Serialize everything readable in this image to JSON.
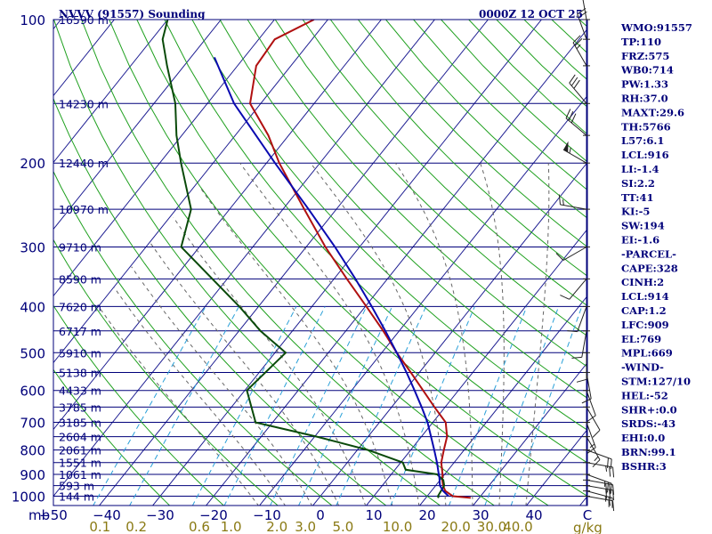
{
  "title_left": "NVVV (91557) Sounding",
  "title_right": "0000Z 12 OCT 25",
  "unit_pressure": "mb",
  "unit_mixing": "g/kg",
  "colors": {
    "frame": "#00007a",
    "isobar": "#00007a",
    "isotherm": "#1a1a90",
    "dry_adiabat": "#1fa01f",
    "moist_adiabat": "#666666",
    "mixing_ratio": "#2aa0d8",
    "temperature": "#b01010",
    "dewpoint": "#0a4a0a",
    "parcel": "#0a0ab0",
    "wind": "#222222"
  },
  "chart_data": {
    "type": "line",
    "title": "NVVV (91557) Sounding",
    "xlabel": "",
    "ylabel": "mb",
    "xlim": [
      -50,
      50
    ],
    "ylim": [
      1050,
      100
    ],
    "log_scale_y": true,
    "skew_t": true,
    "pressure_ticks": [
      100,
      200,
      300,
      400,
      500,
      600,
      700,
      800,
      900,
      1000
    ],
    "temperature_ticks": [
      "−50",
      "−40",
      "−30",
      "−20",
      "−10",
      "0",
      "10",
      "20",
      "30",
      "40",
      "C"
    ],
    "mixing_ratio_ticks": [
      "0.1",
      "0.2",
      "0.6",
      "1.0",
      "2.0",
      "3.0",
      "5.0",
      "10.0",
      "20.0",
      "30.0",
      "40.0"
    ],
    "height_labels": [
      {
        "p": 100,
        "label": "16590 m"
      },
      {
        "p": 150,
        "label": "14230 m"
      },
      {
        "p": 200,
        "label": "12440 m"
      },
      {
        "p": 250,
        "label": "10970 m"
      },
      {
        "p": 300,
        "label": "9710 m"
      },
      {
        "p": 350,
        "label": "8590 m"
      },
      {
        "p": 400,
        "label": "7620 m"
      },
      {
        "p": 450,
        "label": "6717 m"
      },
      {
        "p": 500,
        "label": "5910 m"
      },
      {
        "p": 550,
        "label": "5138 m"
      },
      {
        "p": 600,
        "label": "4433 m"
      },
      {
        "p": 650,
        "label": "3785 m"
      },
      {
        "p": 700,
        "label": "3185 m"
      },
      {
        "p": 750,
        "label": "2604 m"
      },
      {
        "p": 800,
        "label": "2061 m"
      },
      {
        "p": 850,
        "label": "1551 m"
      },
      {
        "p": 900,
        "label": "1061 m"
      },
      {
        "p": 950,
        "label": "593 m"
      },
      {
        "p": 1000,
        "label": "144 m"
      }
    ],
    "series": [
      {
        "key": "temperature",
        "p": [
          1008,
          1000,
          975,
          950,
          925,
          900,
          850,
          800,
          750,
          700,
          650,
          600,
          550,
          500,
          450,
          400,
          350,
          300,
          250,
          200,
          175,
          150,
          125,
          110,
          100
        ],
        "t": [
          28.4,
          24.8,
          22.6,
          21.4,
          20.4,
          19.6,
          17.6,
          16.2,
          14.8,
          12.4,
          8.0,
          3.4,
          -1.6,
          -7.2,
          -13.0,
          -19.8,
          -27.6,
          -36.4,
          -46.0,
          -57.6,
          -63.8,
          -72.0,
          -76.5,
          -77.0,
          -72.6
        ]
      },
      {
        "key": "dewpoint",
        "p": [
          1008,
          1000,
          950,
          925,
          900,
          880,
          850,
          800,
          750,
          700,
          600,
          500,
          450,
          400,
          300,
          250,
          200,
          175,
          150,
          125,
          110,
          100
        ],
        "t": [
          22.4,
          22.0,
          21.6,
          20.6,
          18.6,
          12.0,
          10.4,
          2.0,
          -9.6,
          -23.2,
          -29.6,
          -28.0,
          -36.0,
          -43.6,
          -63.4,
          -67.2,
          -76.0,
          -81.0,
          -86.0,
          -93.2,
          -98.0,
          -100.0
        ]
      },
      {
        "key": "parcel",
        "p": [
          1000,
          975,
          950,
          914,
          900,
          850,
          800,
          750,
          700,
          650,
          600,
          550,
          500,
          450,
          400,
          350,
          300,
          250,
          200,
          150,
          120
        ],
        "t": [
          24.0,
          22.2,
          20.8,
          19.5,
          18.9,
          16.8,
          14.4,
          11.8,
          9.0,
          5.6,
          1.8,
          -2.4,
          -7.2,
          -12.6,
          -18.8,
          -26.0,
          -34.6,
          -45.2,
          -58.4,
          -75.0,
          -85.6
        ]
      }
    ],
    "wind_barbs": [
      {
        "p": 1000,
        "dir": 100,
        "spd": 15
      },
      {
        "p": 975,
        "dir": 105,
        "spd": 25
      },
      {
        "p": 950,
        "dir": 100,
        "spd": 30
      },
      {
        "p": 925,
        "dir": 100,
        "spd": 30
      },
      {
        "p": 900,
        "dir": 110,
        "spd": 25
      },
      {
        "p": 850,
        "dir": 100,
        "spd": 25
      },
      {
        "p": 800,
        "dir": 110,
        "spd": 20
      },
      {
        "p": 750,
        "dir": 150,
        "spd": 15
      },
      {
        "p": 700,
        "dir": 160,
        "spd": 15
      },
      {
        "p": 650,
        "dir": 150,
        "spd": 10
      },
      {
        "p": 600,
        "dir": 160,
        "spd": 10
      },
      {
        "p": 550,
        "dir": 170,
        "spd": 10
      },
      {
        "p": 500,
        "dir": 180,
        "spd": 10
      },
      {
        "p": 450,
        "dir": 190,
        "spd": 10
      },
      {
        "p": 400,
        "dir": 200,
        "spd": 10
      },
      {
        "p": 350,
        "dir": 220,
        "spd": 10
      },
      {
        "p": 300,
        "dir": 240,
        "spd": 10
      },
      {
        "p": 250,
        "dir": 280,
        "spd": 15
      },
      {
        "p": 200,
        "dir": 300,
        "spd": 55
      },
      {
        "p": 175,
        "dir": 310,
        "spd": 30
      },
      {
        "p": 150,
        "dir": 320,
        "spd": 30
      },
      {
        "p": 125,
        "dir": 330,
        "spd": 25
      },
      {
        "p": 110,
        "dir": 340,
        "spd": 20
      },
      {
        "p": 100,
        "dir": 350,
        "spd": 15
      }
    ]
  },
  "indices": [
    "WMO:91557",
    "TP:110",
    "FRZ:575",
    "WB0:714",
    "PW:1.33",
    "RH:37.0",
    "MAXT:29.6",
    "TH:5766",
    "L57:6.1",
    "LCL:916",
    "LI:-1.4",
    "SI:2.2",
    "TT:41",
    "KI:-5",
    "SW:194",
    "EI:-1.6",
    "-PARCEL-",
    "CAPE:328",
    "CINH:2",
    "LCL:914",
    "CAP:1.2",
    "LFC:909",
    "EL:769",
    "MPL:669",
    "-WIND-",
    "STM:127/10",
    "HEL:-52",
    "SHR+:0.0",
    "SRDS:-43",
    "EHI:0.0",
    "BRN:99.1",
    "BSHR:3"
  ]
}
